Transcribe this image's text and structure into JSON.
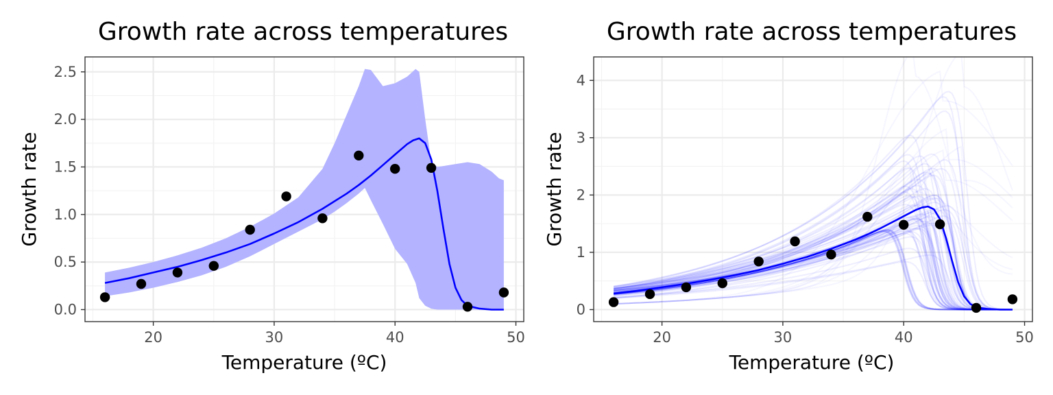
{
  "chart_data": [
    {
      "type": "line",
      "title": "Growth rate across temperatures",
      "xlabel": "Temperature (ºC)",
      "ylabel": "Growth rate",
      "xlim": [
        14.35,
        50.65
      ],
      "ylim": [
        -0.1265,
        2.657
      ],
      "x_ticks": [
        20,
        30,
        40,
        50
      ],
      "y_ticks": [
        0.0,
        0.5,
        1.0,
        1.5,
        2.0,
        2.5
      ],
      "y_tick_labels": [
        "0.0",
        "0.5",
        "1.0",
        "1.5",
        "2.0",
        "2.5"
      ],
      "grid": true,
      "points": {
        "x": [
          16,
          19,
          22,
          25,
          28,
          31,
          34,
          37,
          40,
          43,
          46,
          49
        ],
        "y": [
          0.13,
          0.27,
          0.39,
          0.46,
          0.84,
          1.19,
          0.96,
          1.62,
          1.48,
          1.49,
          0.03,
          0.18
        ]
      },
      "fit": {
        "x": [
          16,
          18,
          20,
          22,
          24,
          26,
          28,
          30,
          32,
          34,
          36,
          37,
          38,
          39,
          40,
          41,
          41.5,
          42,
          42.5,
          43,
          43.5,
          44,
          44.5,
          45,
          45.5,
          46,
          47,
          48,
          49
        ],
        "y": [
          0.28,
          0.33,
          0.39,
          0.45,
          0.52,
          0.6,
          0.69,
          0.8,
          0.92,
          1.06,
          1.22,
          1.31,
          1.41,
          1.52,
          1.63,
          1.74,
          1.78,
          1.8,
          1.75,
          1.58,
          1.25,
          0.85,
          0.48,
          0.23,
          0.1,
          0.04,
          0.01,
          0.0,
          0.0
        ]
      },
      "ribbon": {
        "x": [
          16,
          18,
          20,
          22,
          24,
          26,
          28,
          30,
          32,
          34,
          35,
          36,
          37,
          37.5,
          38,
          39,
          40,
          41,
          41.7,
          42,
          42.5,
          43,
          43.5,
          44,
          45,
          46,
          47,
          48,
          48.6,
          49
        ],
        "upper": [
          0.39,
          0.44,
          0.5,
          0.57,
          0.65,
          0.75,
          0.87,
          1.01,
          1.18,
          1.48,
          1.75,
          2.05,
          2.35,
          2.53,
          2.52,
          2.35,
          2.38,
          2.45,
          2.53,
          2.5,
          2.0,
          1.55,
          1.5,
          1.51,
          1.53,
          1.55,
          1.53,
          1.45,
          1.38,
          1.36
        ],
        "lower": [
          0.14,
          0.18,
          0.23,
          0.29,
          0.36,
          0.45,
          0.56,
          0.69,
          0.82,
          0.95,
          1.03,
          1.12,
          1.22,
          1.28,
          1.15,
          0.9,
          0.64,
          0.48,
          0.28,
          0.12,
          0.04,
          0.01,
          0.0,
          0.0,
          0.0,
          0.0,
          0.0,
          0.0,
          0.0,
          0.0
        ]
      },
      "colors": {
        "fit": "#0000ff",
        "ribbon": "#b3b3ff",
        "points": "#000000"
      }
    },
    {
      "type": "line",
      "title": "Growth rate across temperatures",
      "xlabel": "Temperature (ºC)",
      "ylabel": "Growth rate",
      "xlim": [
        14.35,
        50.65
      ],
      "ylim": [
        -0.21,
        4.41
      ],
      "x_ticks": [
        20,
        30,
        40,
        50
      ],
      "y_ticks": [
        0,
        1,
        2,
        3,
        4
      ],
      "y_tick_labels": [
        "0",
        "1",
        "2",
        "3",
        "4"
      ],
      "grid": true,
      "points": {
        "x": [
          16,
          19,
          22,
          25,
          28,
          31,
          34,
          37,
          40,
          43,
          46,
          49
        ],
        "y": [
          0.13,
          0.27,
          0.39,
          0.46,
          0.84,
          1.19,
          0.96,
          1.62,
          1.48,
          1.49,
          0.03,
          0.18
        ]
      },
      "fit": {
        "x": [
          16,
          18,
          20,
          22,
          24,
          26,
          28,
          30,
          32,
          34,
          36,
          37,
          38,
          39,
          40,
          41,
          41.5,
          42,
          42.5,
          43,
          43.5,
          44,
          44.5,
          45,
          45.5,
          46,
          47,
          48,
          49
        ],
        "y": [
          0.28,
          0.33,
          0.39,
          0.45,
          0.52,
          0.6,
          0.69,
          0.8,
          0.92,
          1.06,
          1.22,
          1.31,
          1.41,
          1.52,
          1.63,
          1.74,
          1.78,
          1.8,
          1.75,
          1.58,
          1.25,
          0.85,
          0.48,
          0.23,
          0.1,
          0.04,
          0.01,
          0.0,
          0.0
        ]
      },
      "bootstrap_curves": 60,
      "colors": {
        "fit": "#0000ff",
        "curves": "#0000ff",
        "points": "#000000"
      }
    }
  ]
}
